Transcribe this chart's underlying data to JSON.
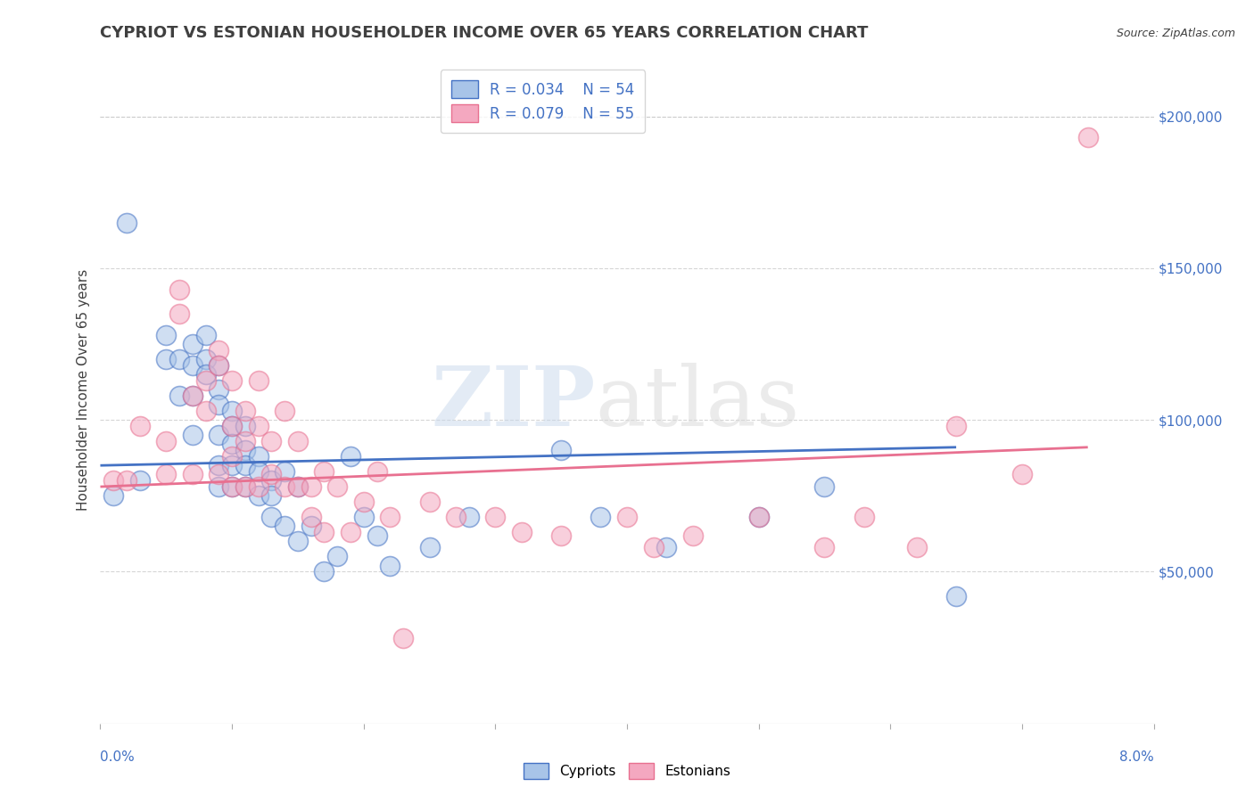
{
  "title": "CYPRIOT VS ESTONIAN HOUSEHOLDER INCOME OVER 65 YEARS CORRELATION CHART",
  "source": "Source: ZipAtlas.com",
  "ylabel": "Householder Income Over 65 years",
  "cypriot_R": "R = 0.034",
  "cypriot_N": "N = 54",
  "estonian_R": "R = 0.079",
  "estonian_N": "N = 55",
  "cypriot_color": "#a8c4e8",
  "estonian_color": "#f4a8c0",
  "cypriot_line_color": "#4472c4",
  "estonian_line_color": "#e87090",
  "xlim": [
    0.0,
    0.08
  ],
  "ylim": [
    0,
    220000
  ],
  "cypriot_scatter_x": [
    0.001,
    0.002,
    0.003,
    0.005,
    0.005,
    0.006,
    0.006,
    0.007,
    0.007,
    0.007,
    0.007,
    0.008,
    0.008,
    0.008,
    0.009,
    0.009,
    0.009,
    0.009,
    0.009,
    0.009,
    0.01,
    0.01,
    0.01,
    0.01,
    0.01,
    0.011,
    0.011,
    0.011,
    0.011,
    0.012,
    0.012,
    0.012,
    0.013,
    0.013,
    0.013,
    0.014,
    0.014,
    0.015,
    0.015,
    0.016,
    0.017,
    0.018,
    0.019,
    0.02,
    0.021,
    0.022,
    0.025,
    0.028,
    0.035,
    0.038,
    0.043,
    0.05,
    0.055,
    0.065
  ],
  "cypriot_scatter_y": [
    75000,
    165000,
    80000,
    120000,
    128000,
    120000,
    108000,
    125000,
    118000,
    108000,
    95000,
    120000,
    115000,
    128000,
    118000,
    110000,
    105000,
    95000,
    85000,
    78000,
    103000,
    98000,
    92000,
    85000,
    78000,
    98000,
    90000,
    85000,
    78000,
    88000,
    83000,
    75000,
    80000,
    75000,
    68000,
    83000,
    65000,
    78000,
    60000,
    65000,
    50000,
    55000,
    88000,
    68000,
    62000,
    52000,
    58000,
    68000,
    90000,
    68000,
    58000,
    68000,
    78000,
    42000
  ],
  "estonian_scatter_x": [
    0.001,
    0.002,
    0.003,
    0.005,
    0.005,
    0.006,
    0.006,
    0.007,
    0.007,
    0.008,
    0.008,
    0.009,
    0.009,
    0.009,
    0.01,
    0.01,
    0.01,
    0.01,
    0.011,
    0.011,
    0.011,
    0.012,
    0.012,
    0.012,
    0.013,
    0.013,
    0.014,
    0.014,
    0.015,
    0.015,
    0.016,
    0.016,
    0.017,
    0.017,
    0.018,
    0.019,
    0.02,
    0.021,
    0.022,
    0.023,
    0.025,
    0.027,
    0.03,
    0.032,
    0.035,
    0.04,
    0.042,
    0.045,
    0.05,
    0.055,
    0.058,
    0.062,
    0.065,
    0.07,
    0.075
  ],
  "estonian_scatter_y": [
    80000,
    80000,
    98000,
    93000,
    82000,
    135000,
    143000,
    108000,
    82000,
    113000,
    103000,
    123000,
    118000,
    82000,
    113000,
    98000,
    88000,
    78000,
    103000,
    93000,
    78000,
    113000,
    98000,
    78000,
    93000,
    82000,
    103000,
    78000,
    93000,
    78000,
    78000,
    68000,
    83000,
    63000,
    78000,
    63000,
    73000,
    83000,
    68000,
    28000,
    73000,
    68000,
    68000,
    63000,
    62000,
    68000,
    58000,
    62000,
    68000,
    58000,
    68000,
    58000,
    98000,
    82000,
    193000
  ],
  "cypriot_trend_x": [
    0.0,
    0.065
  ],
  "cypriot_trend_y": [
    85000,
    91000
  ],
  "estonian_trend_x": [
    0.0,
    0.075
  ],
  "estonian_trend_y": [
    78000,
    91000
  ],
  "right_ytick_values": [
    50000,
    100000,
    150000,
    200000
  ],
  "background_color": "#ffffff",
  "grid_color": "#cccccc",
  "title_color": "#404040"
}
